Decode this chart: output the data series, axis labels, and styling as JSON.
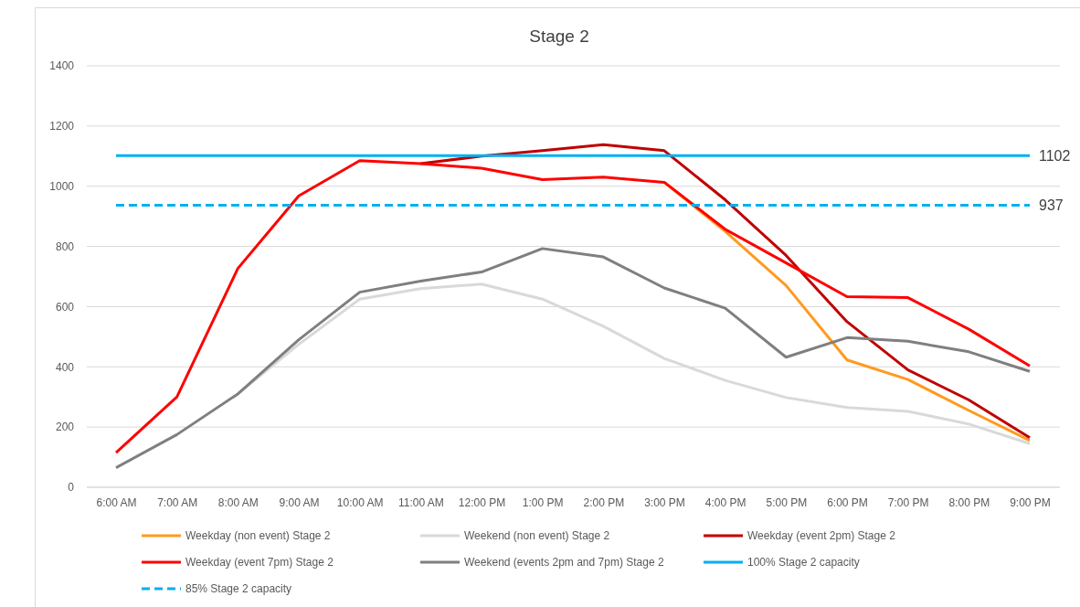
{
  "chart_data": {
    "type": "line",
    "title": "Stage 2",
    "categories": [
      "6:00 AM",
      "7:00 AM",
      "8:00 AM",
      "9:00 AM",
      "10:00 AM",
      "11:00 AM",
      "12:00 PM",
      "1:00 PM",
      "2:00 PM",
      "3:00 PM",
      "4:00 PM",
      "5:00 PM",
      "6:00 PM",
      "7:00 PM",
      "8:00 PM",
      "9:00 PM"
    ],
    "ylim": [
      0,
      1400
    ],
    "yticks": [
      0,
      200,
      400,
      600,
      800,
      1000,
      1200,
      1400
    ],
    "grid": "y",
    "legend": "bottom",
    "marker": "none",
    "series": [
      {
        "name": "Weekday (non event) Stage 2",
        "color": "#ff9a1e",
        "values": [
          null,
          null,
          null,
          null,
          null,
          null,
          null,
          null,
          null,
          1013,
          850,
          670,
          423,
          358,
          255,
          155
        ]
      },
      {
        "name": "Weekend (non event) Stage 2",
        "color": "#d9d9d9",
        "values": [
          null,
          null,
          310,
          475,
          625,
          660,
          675,
          625,
          535,
          428,
          355,
          298,
          265,
          252,
          210,
          145
        ]
      },
      {
        "name": "Weekday (event 2pm) Stage 2",
        "color": "#c00000",
        "values": [
          null,
          null,
          null,
          null,
          null,
          1075,
          1100,
          1118,
          1138,
          1118,
          955,
          770,
          550,
          390,
          290,
          165
        ]
      },
      {
        "name": "Weekday (event 7pm) Stage 2",
        "color": "#ff0000",
        "values": [
          115,
          300,
          727,
          968,
          1085,
          1075,
          1060,
          1022,
          1030,
          1013,
          857,
          745,
          633,
          630,
          525,
          403
        ]
      },
      {
        "name": "Weekend (events 2pm and 7pm) Stage 2",
        "color": "#7f7f7f",
        "values": [
          65,
          175,
          310,
          490,
          648,
          685,
          715,
          793,
          765,
          662,
          595,
          432,
          497,
          485,
          450,
          385
        ]
      },
      {
        "name": "100% Stage 2 capacity",
        "color": "#00b0f0",
        "values": [
          1102,
          1102,
          1102,
          1102,
          1102,
          1102,
          1102,
          1102,
          1102,
          1102,
          1102,
          1102,
          1102,
          1102,
          1102,
          1102
        ],
        "value_labels": [
          null,
          null,
          null,
          null,
          null,
          null,
          null,
          null,
          null,
          null,
          null,
          null,
          null,
          null,
          null,
          "1102"
        ]
      },
      {
        "name": "85% Stage 2 capacity",
        "color": "#00b0f0",
        "line_style": "dashed",
        "values": [
          937,
          937,
          937,
          937,
          937,
          937,
          937,
          937,
          937,
          937,
          937,
          937,
          937,
          937,
          937,
          937
        ],
        "value_labels": [
          null,
          null,
          null,
          null,
          null,
          null,
          null,
          null,
          null,
          null,
          null,
          null,
          null,
          null,
          null,
          "937"
        ]
      }
    ]
  }
}
